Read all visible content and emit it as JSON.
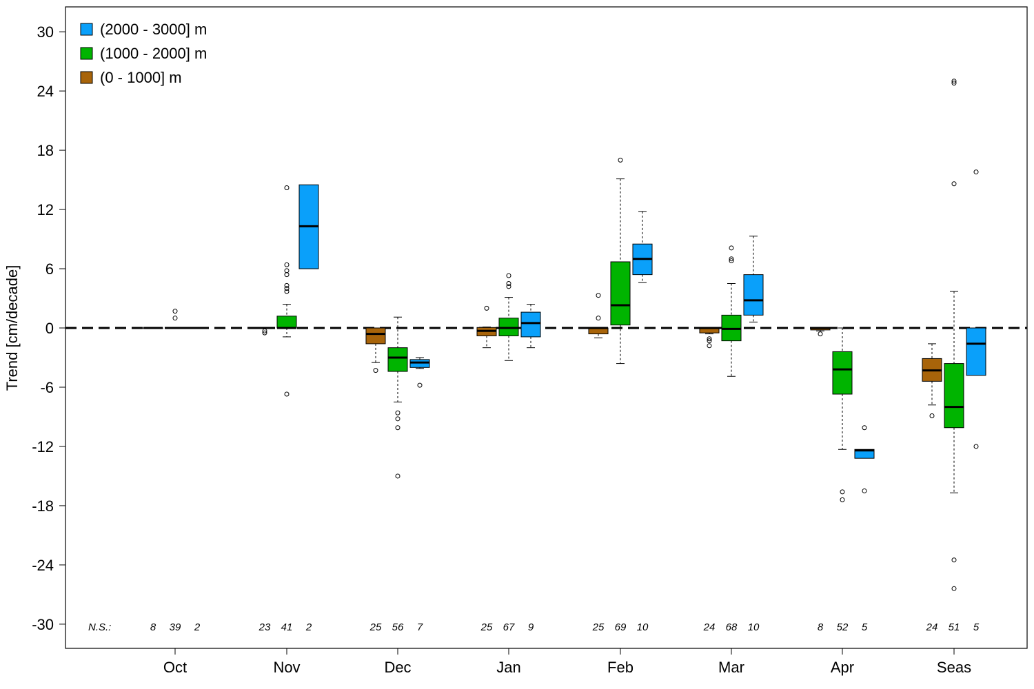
{
  "chart_data": {
    "type": "boxplot",
    "ylabel": "Trend [cm/decade]",
    "ylim": [
      -30,
      30
    ],
    "yticks": [
      30,
      24,
      18,
      12,
      6,
      0,
      -6,
      -12,
      -18,
      -24,
      -30
    ],
    "categories": [
      "Oct",
      "Nov",
      "Dec",
      "Jan",
      "Feb",
      "Mar",
      "Apr",
      "Seas"
    ],
    "ns_label": "N.S.:",
    "reference_line": 0,
    "legend_position": "top-left",
    "series": [
      {
        "name": "(0 - 1000] m",
        "color": "#A8640A",
        "ns": [
          "8",
          "23",
          "25",
          "25",
          "25",
          "24",
          "8",
          "24"
        ],
        "boxes": [
          {
            "min": 0,
            "q1": 0,
            "median": 0,
            "q3": 0,
            "max": 0,
            "outliers": []
          },
          {
            "min": 0,
            "q1": 0,
            "median": 0,
            "q3": 0,
            "max": 0,
            "outliers": [
              -0.3,
              -0.5
            ]
          },
          {
            "min": -3.5,
            "q1": -1.6,
            "median": -0.6,
            "q3": 0,
            "max": 0,
            "outliers": [
              -4.3
            ]
          },
          {
            "min": -2.0,
            "q1": -0.8,
            "median": -0.3,
            "q3": 0.05,
            "max": 0.1,
            "outliers": [
              2.0
            ]
          },
          {
            "min": -1.0,
            "q1": -0.6,
            "median": 0,
            "q3": 0,
            "max": 0,
            "outliers": [
              1.0,
              3.3
            ]
          },
          {
            "min": -0.6,
            "q1": -0.5,
            "median": 0,
            "q3": 0,
            "max": 0,
            "outliers": [
              -1.1,
              -1.3,
              -1.8
            ]
          },
          {
            "min": -0.3,
            "q1": -0.2,
            "median": 0,
            "q3": 0,
            "max": 0,
            "outliers": [
              -0.6
            ]
          },
          {
            "min": -7.8,
            "q1": -5.4,
            "median": -4.3,
            "q3": -3.1,
            "max": -1.6,
            "outliers": [
              -8.9
            ]
          }
        ]
      },
      {
        "name": "(1000 - 2000] m",
        "color": "#00B400",
        "ns": [
          "39",
          "41",
          "56",
          "67",
          "69",
          "68",
          "52",
          "51"
        ],
        "boxes": [
          {
            "min": 0,
            "q1": 0,
            "median": 0,
            "q3": 0,
            "max": 0,
            "outliers": [
              1.0,
              1.7
            ]
          },
          {
            "min": -0.9,
            "q1": 0,
            "median": 0,
            "q3": 1.2,
            "max": 2.4,
            "outliers": [
              -6.7,
              3.7,
              4.0,
              4.3,
              5.4,
              5.8,
              6.4,
              14.2
            ]
          },
          {
            "min": -7.5,
            "q1": -4.4,
            "median": -3.0,
            "q3": -2.0,
            "max": 1.1,
            "outliers": [
              -8.6,
              -9.2,
              -10.1,
              -15.0
            ]
          },
          {
            "min": -3.3,
            "q1": -0.8,
            "median": 0,
            "q3": 1.0,
            "max": 3.1,
            "outliers": [
              4.2,
              4.5,
              5.3
            ]
          },
          {
            "min": -3.6,
            "q1": 0.3,
            "median": 2.3,
            "q3": 6.7,
            "max": 15.1,
            "outliers": [
              17.0
            ]
          },
          {
            "min": -4.9,
            "q1": -1.3,
            "median": -0.1,
            "q3": 1.3,
            "max": 4.5,
            "outliers": [
              6.8,
              7.0,
              8.1
            ]
          },
          {
            "min": -12.3,
            "q1": -6.7,
            "median": -4.2,
            "q3": -2.4,
            "max": 0,
            "outliers": [
              -16.6,
              -17.4
            ]
          },
          {
            "min": -16.7,
            "q1": -10.1,
            "median": -8.0,
            "q3": -3.6,
            "max": 3.7,
            "outliers": [
              -23.5,
              -26.4,
              14.6,
              24.8,
              25.0
            ]
          }
        ]
      },
      {
        "name": "(2000 - 3000] m",
        "color": "#0AA0FA",
        "ns": [
          "2",
          "2",
          "7",
          "9",
          "10",
          "10",
          "5",
          "5"
        ],
        "boxes": [
          {
            "min": 0,
            "q1": 0,
            "median": 0,
            "q3": 0,
            "max": 0,
            "outliers": []
          },
          {
            "min": 6.0,
            "q1": 6.0,
            "median": 10.3,
            "q3": 14.5,
            "max": 14.5,
            "outliers": []
          },
          {
            "min": -4.1,
            "q1": -4.0,
            "median": -3.5,
            "q3": -3.2,
            "max": -3.0,
            "outliers": [
              -5.8
            ]
          },
          {
            "min": -2.0,
            "q1": -0.9,
            "median": 0.5,
            "q3": 1.6,
            "max": 2.4,
            "outliers": []
          },
          {
            "min": 4.6,
            "q1": 5.4,
            "median": 7.0,
            "q3": 8.5,
            "max": 11.8,
            "outliers": []
          },
          {
            "min": 0.6,
            "q1": 1.3,
            "median": 2.8,
            "q3": 5.4,
            "max": 9.3,
            "outliers": []
          },
          {
            "min": -13.2,
            "q1": -13.2,
            "median": -12.4,
            "q3": -12.3,
            "max": -12.3,
            "outliers": [
              -10.1,
              -16.5
            ]
          },
          {
            "min": -4.8,
            "q1": -4.8,
            "median": -1.6,
            "q3": 0,
            "max": 0,
            "outliers": [
              -12.0,
              15.8
            ]
          }
        ]
      }
    ]
  }
}
